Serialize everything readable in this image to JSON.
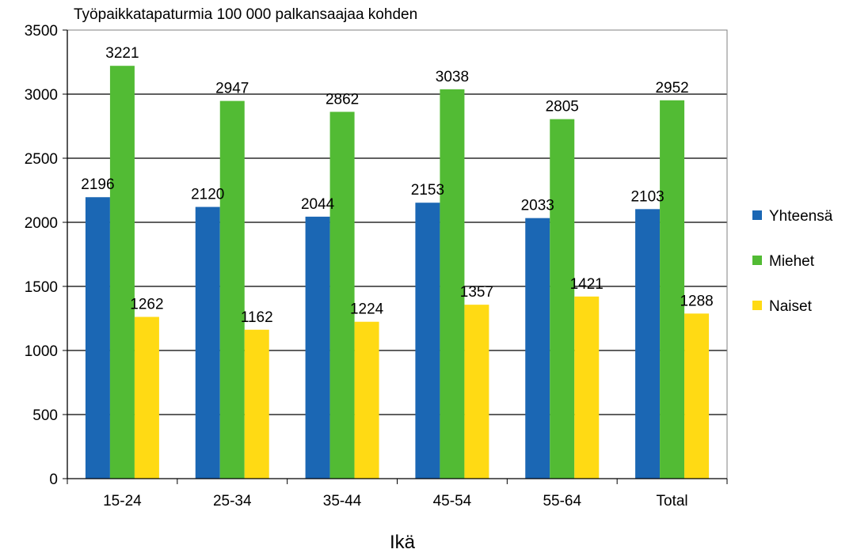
{
  "chart_data": {
    "type": "bar",
    "title": "Työpaikkatapaturmia 100 000  palkansaajaa kohden",
    "xlabel": "Ikä",
    "ylabel": "",
    "categories": [
      "15-24",
      "25-34",
      "35-44",
      "45-54",
      "55-64",
      "Total"
    ],
    "series": [
      {
        "name": "Yhteensä",
        "color": "#1b67b4",
        "values": [
          2196,
          2120,
          2044,
          2153,
          2033,
          2103
        ]
      },
      {
        "name": "Miehet",
        "color": "#52bb34",
        "values": [
          3221,
          2947,
          2862,
          3038,
          2805,
          2952
        ]
      },
      {
        "name": "Naiset",
        "color": "#ffda14",
        "values": [
          1262,
          1162,
          1224,
          1357,
          1421,
          1288
        ]
      }
    ],
    "ylim": [
      0,
      3500
    ],
    "yticks": [
      0,
      500,
      1000,
      1500,
      2000,
      2500,
      3000,
      3500
    ],
    "grid": true,
    "legend_position": "right"
  }
}
